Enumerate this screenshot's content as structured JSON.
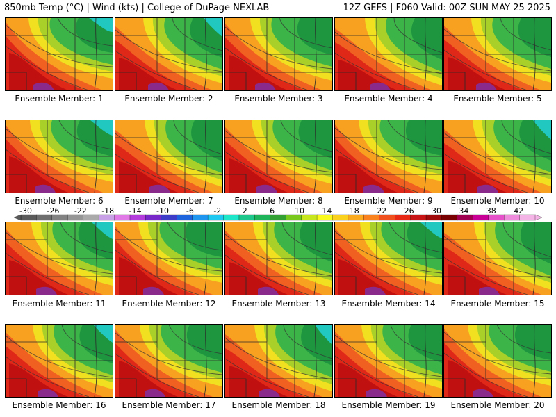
{
  "header": {
    "left": "850mb Temp (°C) | Wind (kts) | College of DuPage NEXLAB",
    "right": "12Z GEFS | F060 Valid: 00Z SUN MAY 25 2025"
  },
  "member_label": "Ensemble Member: ",
  "members": [
    1,
    2,
    3,
    4,
    5,
    6,
    7,
    8,
    9,
    10,
    11,
    12,
    13,
    14,
    15,
    16,
    17,
    18,
    19,
    20
  ],
  "legend": {
    "ticks": [
      "-30",
      "-26",
      "-22",
      "-18",
      "-14",
      "-10",
      "-6",
      "-2",
      "2",
      "6",
      "10",
      "14",
      "18",
      "22",
      "26",
      "30",
      "34",
      "38",
      "42"
    ],
    "colors": [
      "#5a5a5a",
      "#6e6e6e",
      "#828282",
      "#969696",
      "#aaaaaa",
      "#c8a0e6",
      "#e078e6",
      "#b43cdc",
      "#7828c8",
      "#3c3cc8",
      "#1e64dc",
      "#1e96f0",
      "#1ec8f0",
      "#1ee6c8",
      "#1ec88c",
      "#1eb45a",
      "#32a032",
      "#78c81e",
      "#c8e61e",
      "#fafa1e",
      "#fad21e",
      "#faaa1e",
      "#fa821e",
      "#f0501e",
      "#e62814",
      "#c81414",
      "#a00a0a",
      "#780000",
      "#a00050",
      "#c80096",
      "#e650c8",
      "#f08cdc",
      "#f5b4e6"
    ]
  },
  "field_colors": {
    "purple": "#8a2a8a",
    "dark_red": "#c01010",
    "red": "#e02818",
    "orange_red": "#f06020",
    "orange": "#f8a020",
    "yellow": "#f0e020",
    "yellow_green": "#a8d028",
    "green": "#3cb448",
    "dark_green": "#1e9640",
    "cyan": "#20c8c0"
  }
}
